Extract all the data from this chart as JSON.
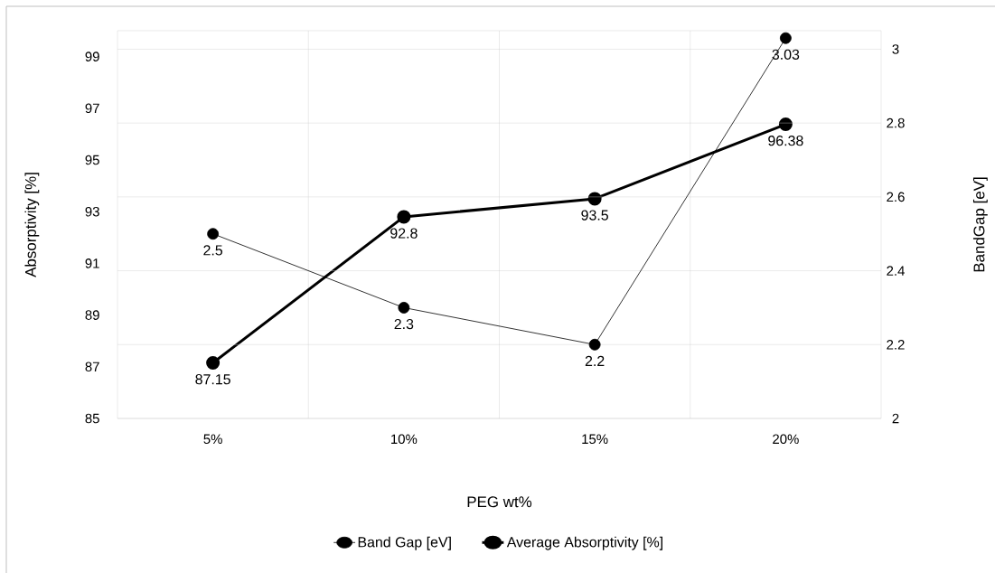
{
  "chart_data": {
    "type": "line",
    "categories": [
      "5%",
      "10%",
      "15%",
      "20%"
    ],
    "xlabel": "PEG wt%",
    "ylabel": "Absorptivity [%]",
    "y2label": "BandGap [eV]",
    "series": [
      {
        "name": "Band Gap [eV]",
        "color": "#000000",
        "axis": "y2",
        "values": [
          2.5,
          2.3,
          2.2,
          3.03
        ],
        "value_labels": [
          "2.5",
          "2.3",
          "2.2",
          "3.03"
        ]
      },
      {
        "name": "Average Absorptivity [%]",
        "color": "#000000",
        "axis": "y",
        "values": [
          87.15,
          92.8,
          93.5,
          96.38
        ],
        "value_labels": [
          "87.15",
          "92.8",
          "93.5",
          "96.38"
        ]
      }
    ],
    "ylim": [
      85,
      100
    ],
    "yticks": [
      85,
      87,
      89,
      91,
      93,
      95,
      97,
      99
    ],
    "y2lim": [
      2,
      3.05
    ],
    "y2ticks": [
      2,
      2.2,
      2.4,
      2.6,
      2.8,
      3
    ],
    "grid": true,
    "legend": "bottom",
    "marker": "circle",
    "line_style": "solid"
  }
}
